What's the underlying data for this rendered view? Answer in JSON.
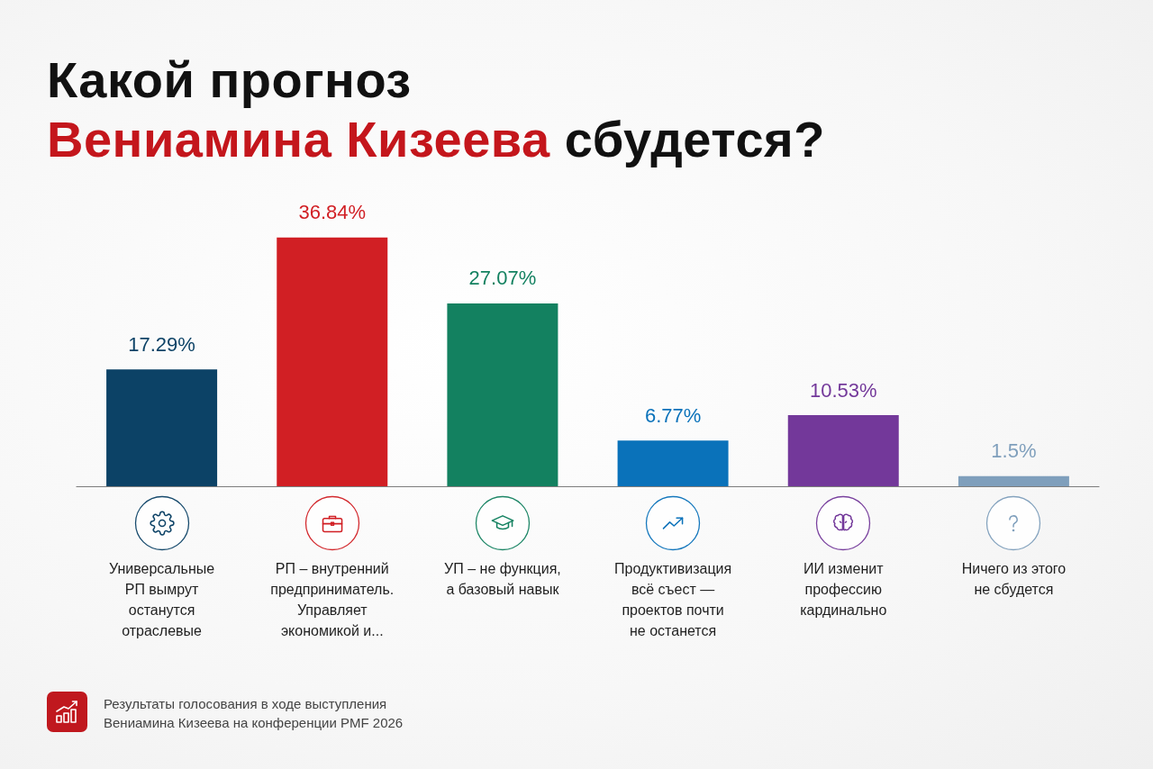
{
  "chart_data": {
    "type": "bar",
    "title": "Какой прогноз\nВениамина Кизеева сбудется?",
    "categories": [
      "Универсальные\nРП вымрут\nостанутся\nотраслевые",
      "РП – внутренний\nпредприниматель.\nУправляет\nэкономикой и...",
      "УП – не функция,\nа базовый навык",
      "Продуктивизация\nвсё съест —\nпроектов почти\nне останется",
      "ИИ изменит\nпрофессию\nкардинально",
      "Ничего из этого\nне сбудется"
    ],
    "values": [
      17.29,
      36.84,
      27.07,
      6.77,
      10.53,
      1.5
    ],
    "colors": [
      "#0c4266",
      "#d11f24",
      "#138160",
      "#0a72ba",
      "#73389a",
      "#7f9fbc"
    ],
    "value_labels": [
      "17.29%",
      "36.84%",
      "27.07%",
      "6.77%",
      "10.53%",
      "1.5%"
    ],
    "annotations": [
      "Результаты голосования в ходе выступления\nВениамина Кизеева на конференции PMF 2026"
    ],
    "tick_labels": "x"
  }
}
